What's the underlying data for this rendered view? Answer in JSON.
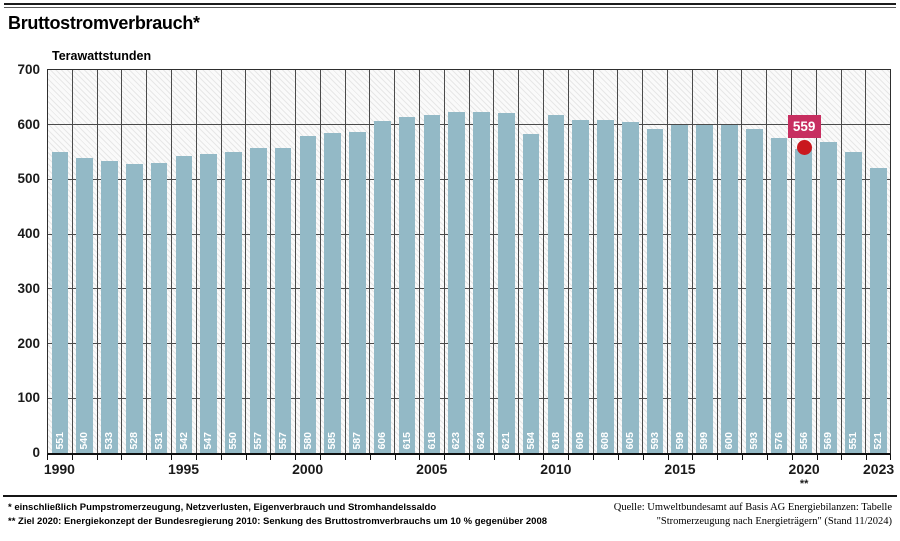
{
  "chart_data": {
    "type": "bar",
    "title": "Bruttostromverbrauch*",
    "ylabel": "Terawattstunden",
    "xlabel": "",
    "categories": [
      1990,
      1991,
      1992,
      1993,
      1994,
      1995,
      1996,
      1997,
      1998,
      1999,
      2000,
      2001,
      2002,
      2003,
      2004,
      2005,
      2006,
      2007,
      2008,
      2009,
      2010,
      2011,
      2012,
      2013,
      2014,
      2015,
      2016,
      2017,
      2018,
      2019,
      2020,
      2021,
      2022,
      2023
    ],
    "values": [
      551,
      540,
      533,
      528,
      531,
      542,
      547,
      550,
      557,
      557,
      580,
      585,
      587,
      606,
      615,
      618,
      623,
      624,
      621,
      584,
      618,
      609,
      608,
      605,
      593,
      599,
      599,
      600,
      593,
      576,
      556,
      569,
      551,
      521
    ],
    "ylim": [
      0,
      700
    ],
    "yticks": [
      0,
      100,
      200,
      300,
      400,
      500,
      600,
      700
    ],
    "xtick_labels": [
      "1990",
      "1995",
      "2000",
      "2005",
      "2010",
      "2015",
      "2020",
      "2023"
    ],
    "grid": true,
    "legend_position": "none",
    "bar_color": "#93b9c6",
    "target_marker": {
      "category": 2020,
      "value": 559,
      "label": "559",
      "footnote_mark": "**",
      "badge_color": "#c72e60",
      "dot_color": "#c9181e"
    }
  },
  "footnotes": {
    "line1": "* einschließlich Pumpstromerzeugung, Netzverlusten, Eigenverbrauch und Stromhandelssaldo",
    "line2": "** Ziel 2020: Energiekonzept der Bundesregierung 2010: Senkung des Bruttostromverbrauchs um 10 % gegenüber 2008"
  },
  "source": {
    "line1": "Quelle: Umweltbundesamt auf Basis AG Energiebilanzen: Tabelle",
    "line2": "\"Stromerzeugung nach Energieträgern\" (Stand 11/2024)"
  }
}
